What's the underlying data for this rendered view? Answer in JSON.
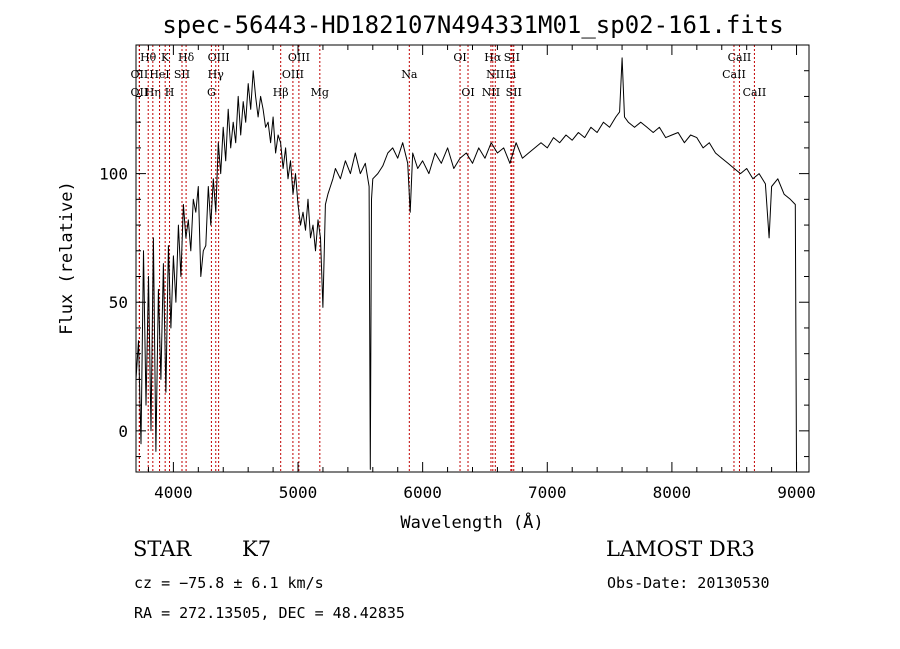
{
  "chart_data": {
    "type": "line",
    "title": "spec-56443-HD182107N494331M01_sp02-161.fits",
    "xlabel": "Wavelength (Å)",
    "ylabel": "Flux (relative)",
    "xlim": [
      3700,
      9100
    ],
    "ylim": [
      -16,
      150
    ],
    "x_ticks": [
      4000,
      5000,
      6000,
      7000,
      8000,
      9000
    ],
    "y_ticks": [
      0,
      50,
      100
    ],
    "grid": false,
    "series": [
      {
        "x": [
          3700,
          3720,
          3740,
          3760,
          3780,
          3800,
          3820,
          3840,
          3860,
          3880,
          3900,
          3920,
          3940,
          3960,
          3980,
          4000,
          4020,
          4040,
          4060,
          4080,
          4100,
          4120,
          4140,
          4160,
          4180,
          4200,
          4220,
          4240,
          4260,
          4280,
          4300,
          4320,
          4340,
          4360,
          4380,
          4400,
          4420,
          4440,
          4460,
          4480,
          4500,
          4520,
          4540,
          4560,
          4580,
          4600,
          4620,
          4640,
          4660,
          4680,
          4700,
          4720,
          4740,
          4760,
          4780,
          4800,
          4820,
          4840,
          4860,
          4880,
          4900,
          4920,
          4940,
          4960,
          4980,
          5000,
          5020,
          5040,
          5060,
          5080,
          5100,
          5120,
          5140,
          5160,
          5180,
          5200,
          5220,
          5240,
          5260,
          5280,
          5300,
          5340,
          5380,
          5420,
          5460,
          5500,
          5540,
          5570,
          5580,
          5590,
          5600,
          5640,
          5680,
          5720,
          5760,
          5800,
          5840,
          5880,
          5900,
          5920,
          5960,
          6000,
          6050,
          6100,
          6150,
          6200,
          6250,
          6300,
          6350,
          6400,
          6450,
          6500,
          6550,
          6600,
          6650,
          6700,
          6750,
          6800,
          6850,
          6900,
          6950,
          7000,
          7050,
          7100,
          7150,
          7200,
          7250,
          7300,
          7350,
          7400,
          7450,
          7500,
          7550,
          7580,
          7600,
          7620,
          7650,
          7700,
          7750,
          7800,
          7850,
          7900,
          7950,
          8000,
          8050,
          8100,
          8150,
          8200,
          8250,
          8300,
          8350,
          8400,
          8450,
          8500,
          8550,
          8600,
          8650,
          8700,
          8750,
          8780,
          8800,
          8850,
          8900,
          8950,
          8990,
          9000
        ],
        "y": [
          20,
          35,
          -5,
          70,
          10,
          60,
          0,
          75,
          -8,
          55,
          20,
          65,
          15,
          72,
          40,
          68,
          50,
          80,
          60,
          88,
          75,
          82,
          70,
          90,
          85,
          95,
          60,
          70,
          72,
          95,
          80,
          98,
          85,
          112,
          100,
          118,
          105,
          125,
          110,
          120,
          112,
          130,
          115,
          128,
          120,
          135,
          125,
          140,
          130,
          122,
          130,
          125,
          118,
          120,
          112,
          122,
          108,
          115,
          112,
          102,
          110,
          98,
          105,
          92,
          100,
          88,
          80,
          85,
          78,
          90,
          75,
          80,
          70,
          82,
          75,
          48,
          88,
          92,
          95,
          98,
          102,
          98,
          105,
          100,
          108,
          100,
          104,
          95,
          -15,
          90,
          98,
          100,
          103,
          108,
          110,
          106,
          112,
          104,
          85,
          108,
          102,
          105,
          100,
          108,
          104,
          110,
          102,
          106,
          108,
          104,
          110,
          106,
          112,
          108,
          110,
          104,
          112,
          106,
          108,
          110,
          112,
          110,
          114,
          112,
          115,
          113,
          116,
          114,
          118,
          116,
          120,
          118,
          122,
          124,
          145,
          122,
          120,
          118,
          120,
          118,
          116,
          118,
          114,
          115,
          116,
          112,
          115,
          114,
          110,
          112,
          108,
          106,
          104,
          102,
          100,
          102,
          98,
          100,
          96,
          75,
          95,
          98,
          92,
          90,
          88,
          -15
        ]
      }
    ],
    "lines": [
      {
        "label": "Hθ",
        "x": 3798,
        "row": 0
      },
      {
        "label": "OII",
        "x": 3727,
        "row": 1
      },
      {
        "label": "OII",
        "x": 3727,
        "row": 2
      },
      {
        "label": "Hη",
        "x": 3835,
        "row": 2
      },
      {
        "label": "K",
        "x": 3934,
        "row": 0
      },
      {
        "label": "HeI",
        "x": 3889,
        "row": 1
      },
      {
        "label": "H",
        "x": 3969,
        "row": 2
      },
      {
        "label": "Hδ",
        "x": 4102,
        "row": 0
      },
      {
        "label": "SII",
        "x": 4069,
        "row": 1
      },
      {
        "label": "OIII",
        "x": 4363,
        "row": 0
      },
      {
        "label": "Hγ",
        "x": 4340,
        "row": 1
      },
      {
        "label": "G",
        "x": 4305,
        "row": 2
      },
      {
        "label": "OIII",
        "x": 5007,
        "row": 0
      },
      {
        "label": "OIII",
        "x": 4959,
        "row": 1
      },
      {
        "label": "Hβ",
        "x": 4861,
        "row": 2
      },
      {
        "label": "Mg",
        "x": 5175,
        "row": 2
      },
      {
        "label": "Na",
        "x": 5893,
        "row": 1
      },
      {
        "label": "OI",
        "x": 6300,
        "row": 0
      },
      {
        "label": "OI",
        "x": 6364,
        "row": 2
      },
      {
        "label": "Hα",
        "x": 6563,
        "row": 0
      },
      {
        "label": "SII",
        "x": 6716,
        "row": 0
      },
      {
        "label": "NII",
        "x": 6583,
        "row": 1
      },
      {
        "label": "Li",
        "x": 6708,
        "row": 1
      },
      {
        "label": "NII",
        "x": 6548,
        "row": 2
      },
      {
        "label": "SII",
        "x": 6731,
        "row": 2
      },
      {
        "label": "CaII",
        "x": 8542,
        "row": 0
      },
      {
        "label": "CaII",
        "x": 8498,
        "row": 1
      },
      {
        "label": "CaII",
        "x": 8662,
        "row": 2
      }
    ]
  },
  "info": {
    "class_label": "STAR",
    "subclass": "K7",
    "survey": "LAMOST DR3",
    "cz": "cz = −75.8 ± 6.1 km/s",
    "obs_date": "Obs-Date: 20130530",
    "coords": "RA = 272.13505, DEC =  48.42835"
  },
  "colors": {
    "spectrum": "#000000",
    "line_markers": "#c00000"
  }
}
